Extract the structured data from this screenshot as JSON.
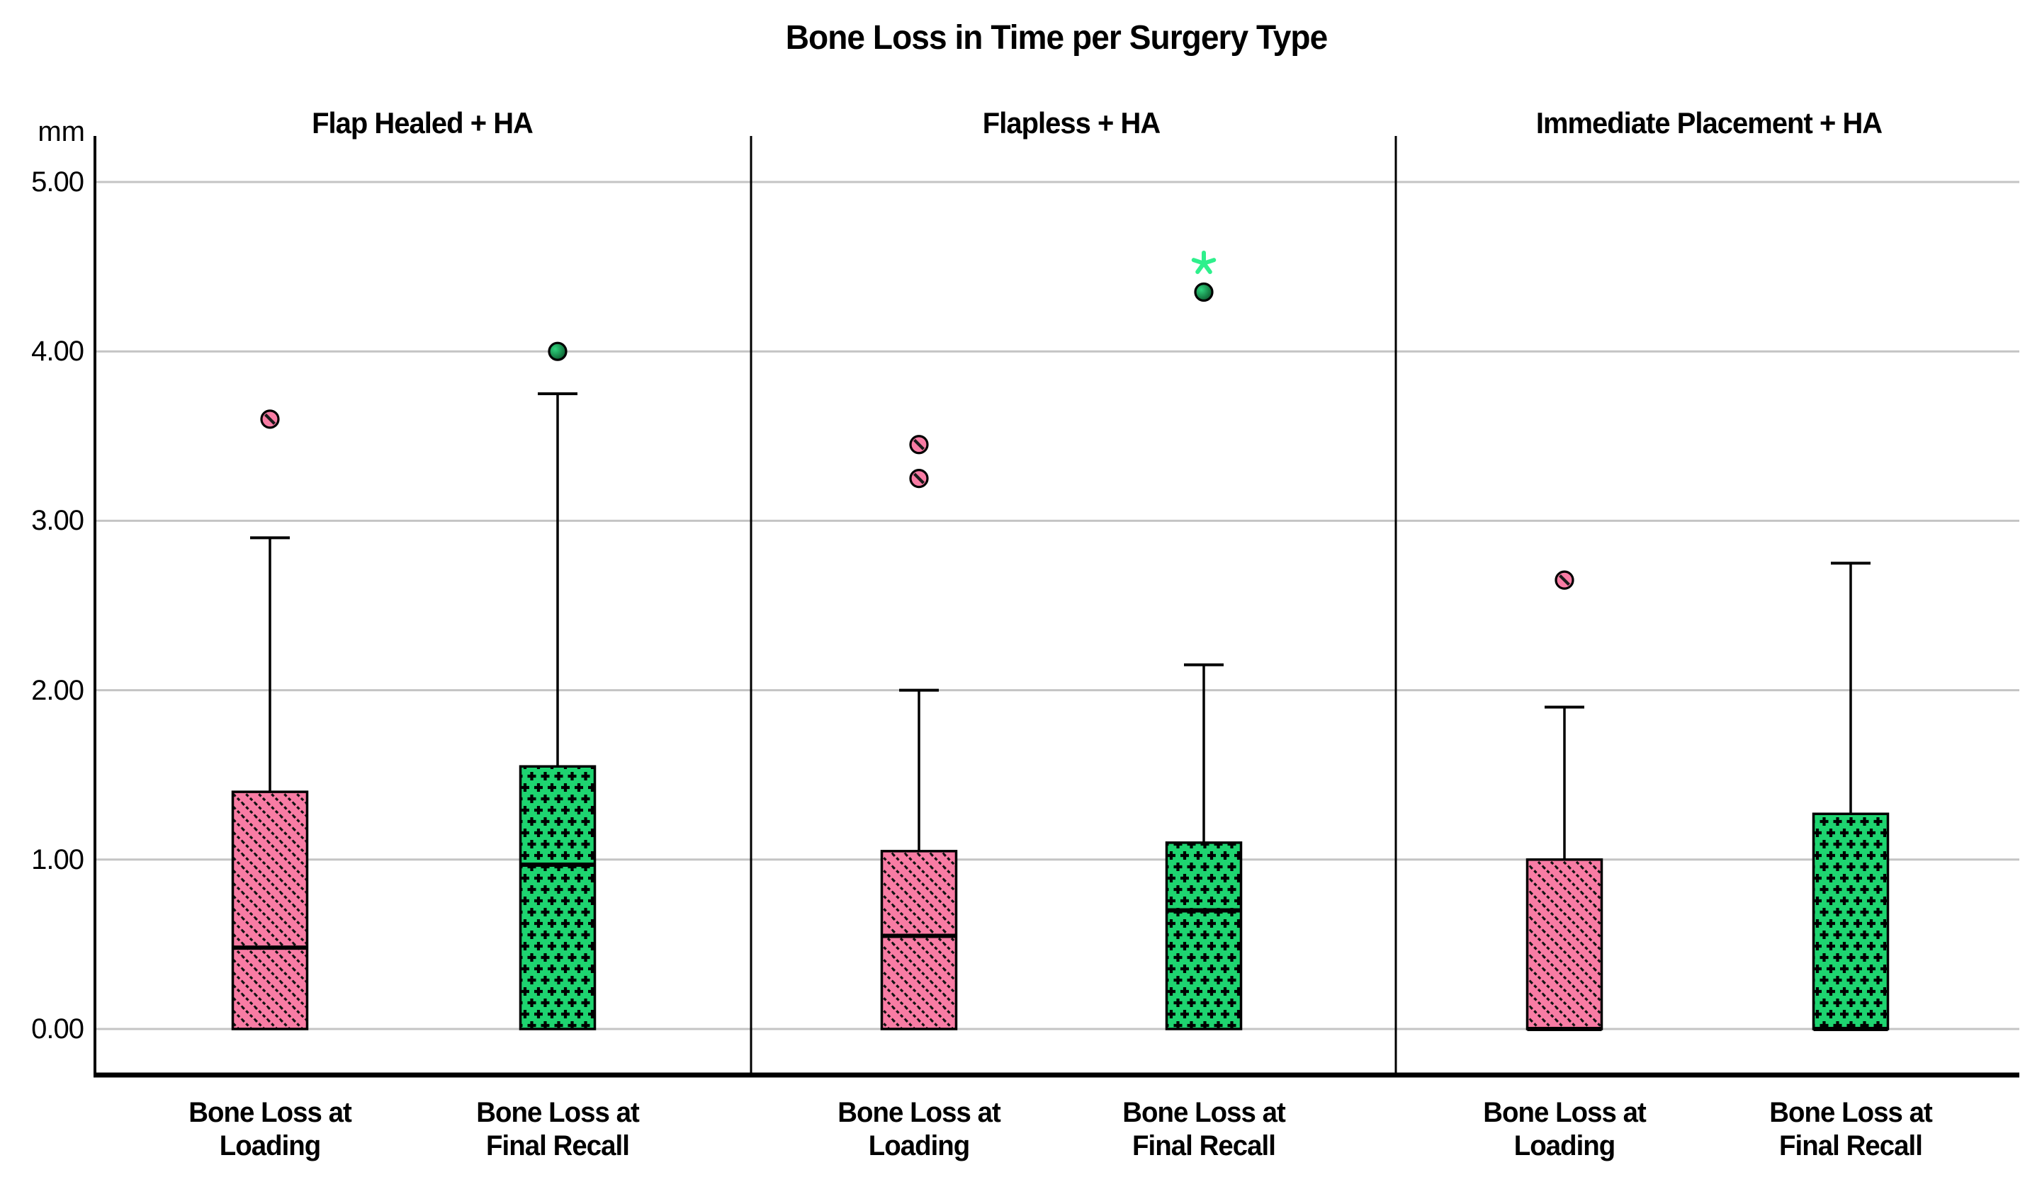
{
  "chart_data": {
    "type": "boxplot",
    "title": "Bone Loss in Time per Surgery Type",
    "ylabel": "mm",
    "yticks": [
      0,
      1,
      2,
      3,
      4,
      5
    ],
    "ytick_labels": [
      "0.00",
      "1.00",
      "2.00",
      "3.00",
      "4.00",
      "5.00"
    ],
    "ylim": [
      -0.27,
      5.27
    ],
    "grid": true,
    "legend": "none",
    "categories": [
      "Bone Loss at\nLoading",
      "Bone Loss at\nFinal Recall"
    ],
    "colors": {
      "box_loading": "#f87ca4",
      "box_final_recall": "#1ed470",
      "hatch": "#000000",
      "extreme_star": "#2ef08c",
      "outlier_green_light": "#2fd57e",
      "outlier_green_dark": "#05441f",
      "gridline": "#c4c4c4",
      "axis": "#000000"
    },
    "panels": [
      {
        "title": "Flap Healed + HA",
        "boxes": [
          {
            "name": "Bone Loss at Loading",
            "q1": 0.0,
            "median": 0.48,
            "q3": 1.4,
            "whisker_low": 0.0,
            "whisker_high": 2.9,
            "outliers": [
              3.6
            ],
            "extremes": []
          },
          {
            "name": "Bone Loss at Final Recall",
            "q1": 0.0,
            "median": 0.97,
            "q3": 1.55,
            "whisker_low": 0.0,
            "whisker_high": 3.75,
            "outliers": [
              4.0
            ],
            "extremes": []
          }
        ]
      },
      {
        "title": "Flapless + HA",
        "boxes": [
          {
            "name": "Bone Loss at Loading",
            "q1": 0.0,
            "median": 0.55,
            "q3": 1.05,
            "whisker_low": 0.0,
            "whisker_high": 2.0,
            "outliers": [
              3.25,
              3.45
            ],
            "extremes": []
          },
          {
            "name": "Bone Loss at Final Recall",
            "q1": 0.0,
            "median": 0.7,
            "q3": 1.1,
            "whisker_low": 0.0,
            "whisker_high": 2.15,
            "outliers": [
              4.35
            ],
            "extremes": [
              4.52
            ]
          }
        ]
      },
      {
        "title": "Immediate Placement + HA",
        "boxes": [
          {
            "name": "Bone Loss at Loading",
            "q1": 0.0,
            "median": 0.0,
            "q3": 1.0,
            "whisker_low": 0.0,
            "whisker_high": 1.9,
            "outliers": [
              2.65
            ],
            "extremes": []
          },
          {
            "name": "Bone Loss at Final Recall",
            "q1": 0.0,
            "median": 0.0,
            "q3": 1.27,
            "whisker_low": 0.0,
            "whisker_high": 2.75,
            "outliers": [],
            "extremes": []
          }
        ]
      }
    ]
  }
}
